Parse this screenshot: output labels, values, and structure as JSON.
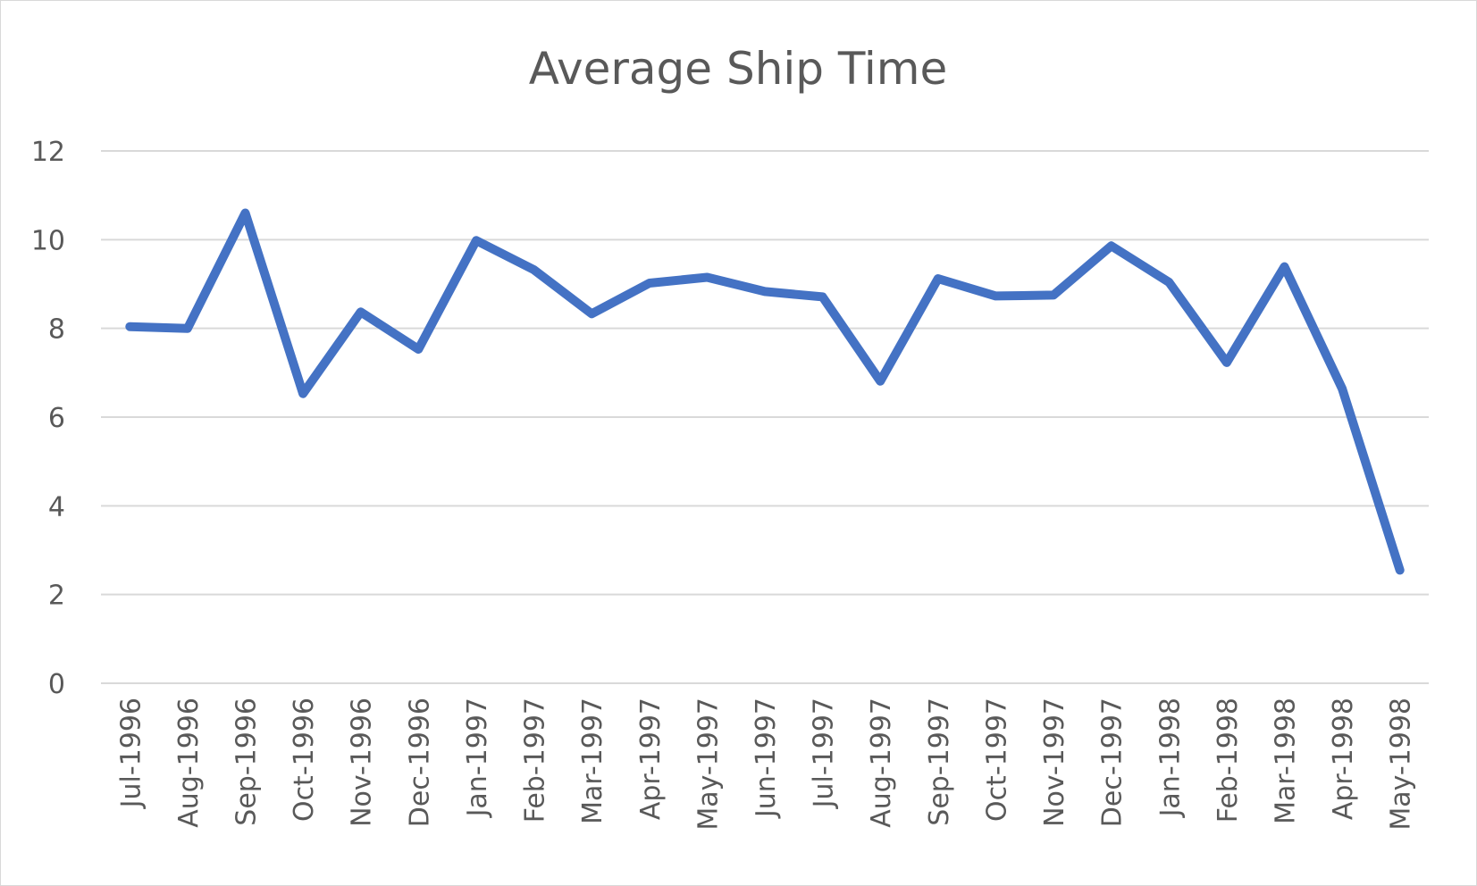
{
  "chart_data": {
    "type": "line",
    "title": "Average Ship Time",
    "xlabel": "",
    "ylabel": "",
    "categories": [
      "Jul-1996",
      "Aug-1996",
      "Sep-1996",
      "Oct-1996",
      "Nov-1996",
      "Dec-1996",
      "Jan-1997",
      "Feb-1997",
      "Mar-1997",
      "Apr-1997",
      "May-1997",
      "Jun-1997",
      "Jul-1997",
      "Aug-1997",
      "Sep-1997",
      "Oct-1997",
      "Nov-1997",
      "Dec-1997",
      "Jan-1998",
      "Feb-1998",
      "Mar-1998",
      "Apr-1998",
      "May-1998"
    ],
    "series": [
      {
        "values": [
          8.04,
          8.0,
          10.6,
          6.53,
          8.37,
          7.53,
          9.98,
          9.32,
          8.33,
          9.02,
          9.15,
          8.83,
          8.71,
          6.81,
          9.12,
          8.73,
          8.75,
          9.86,
          9.04,
          7.23,
          9.39,
          6.64,
          2.55
        ],
        "color": "#4472c4"
      }
    ],
    "yticks": [
      "0",
      "2",
      "4",
      "6",
      "8",
      "10",
      "12"
    ],
    "ylim": [
      0,
      12
    ],
    "grid": true,
    "legend": "none"
  }
}
